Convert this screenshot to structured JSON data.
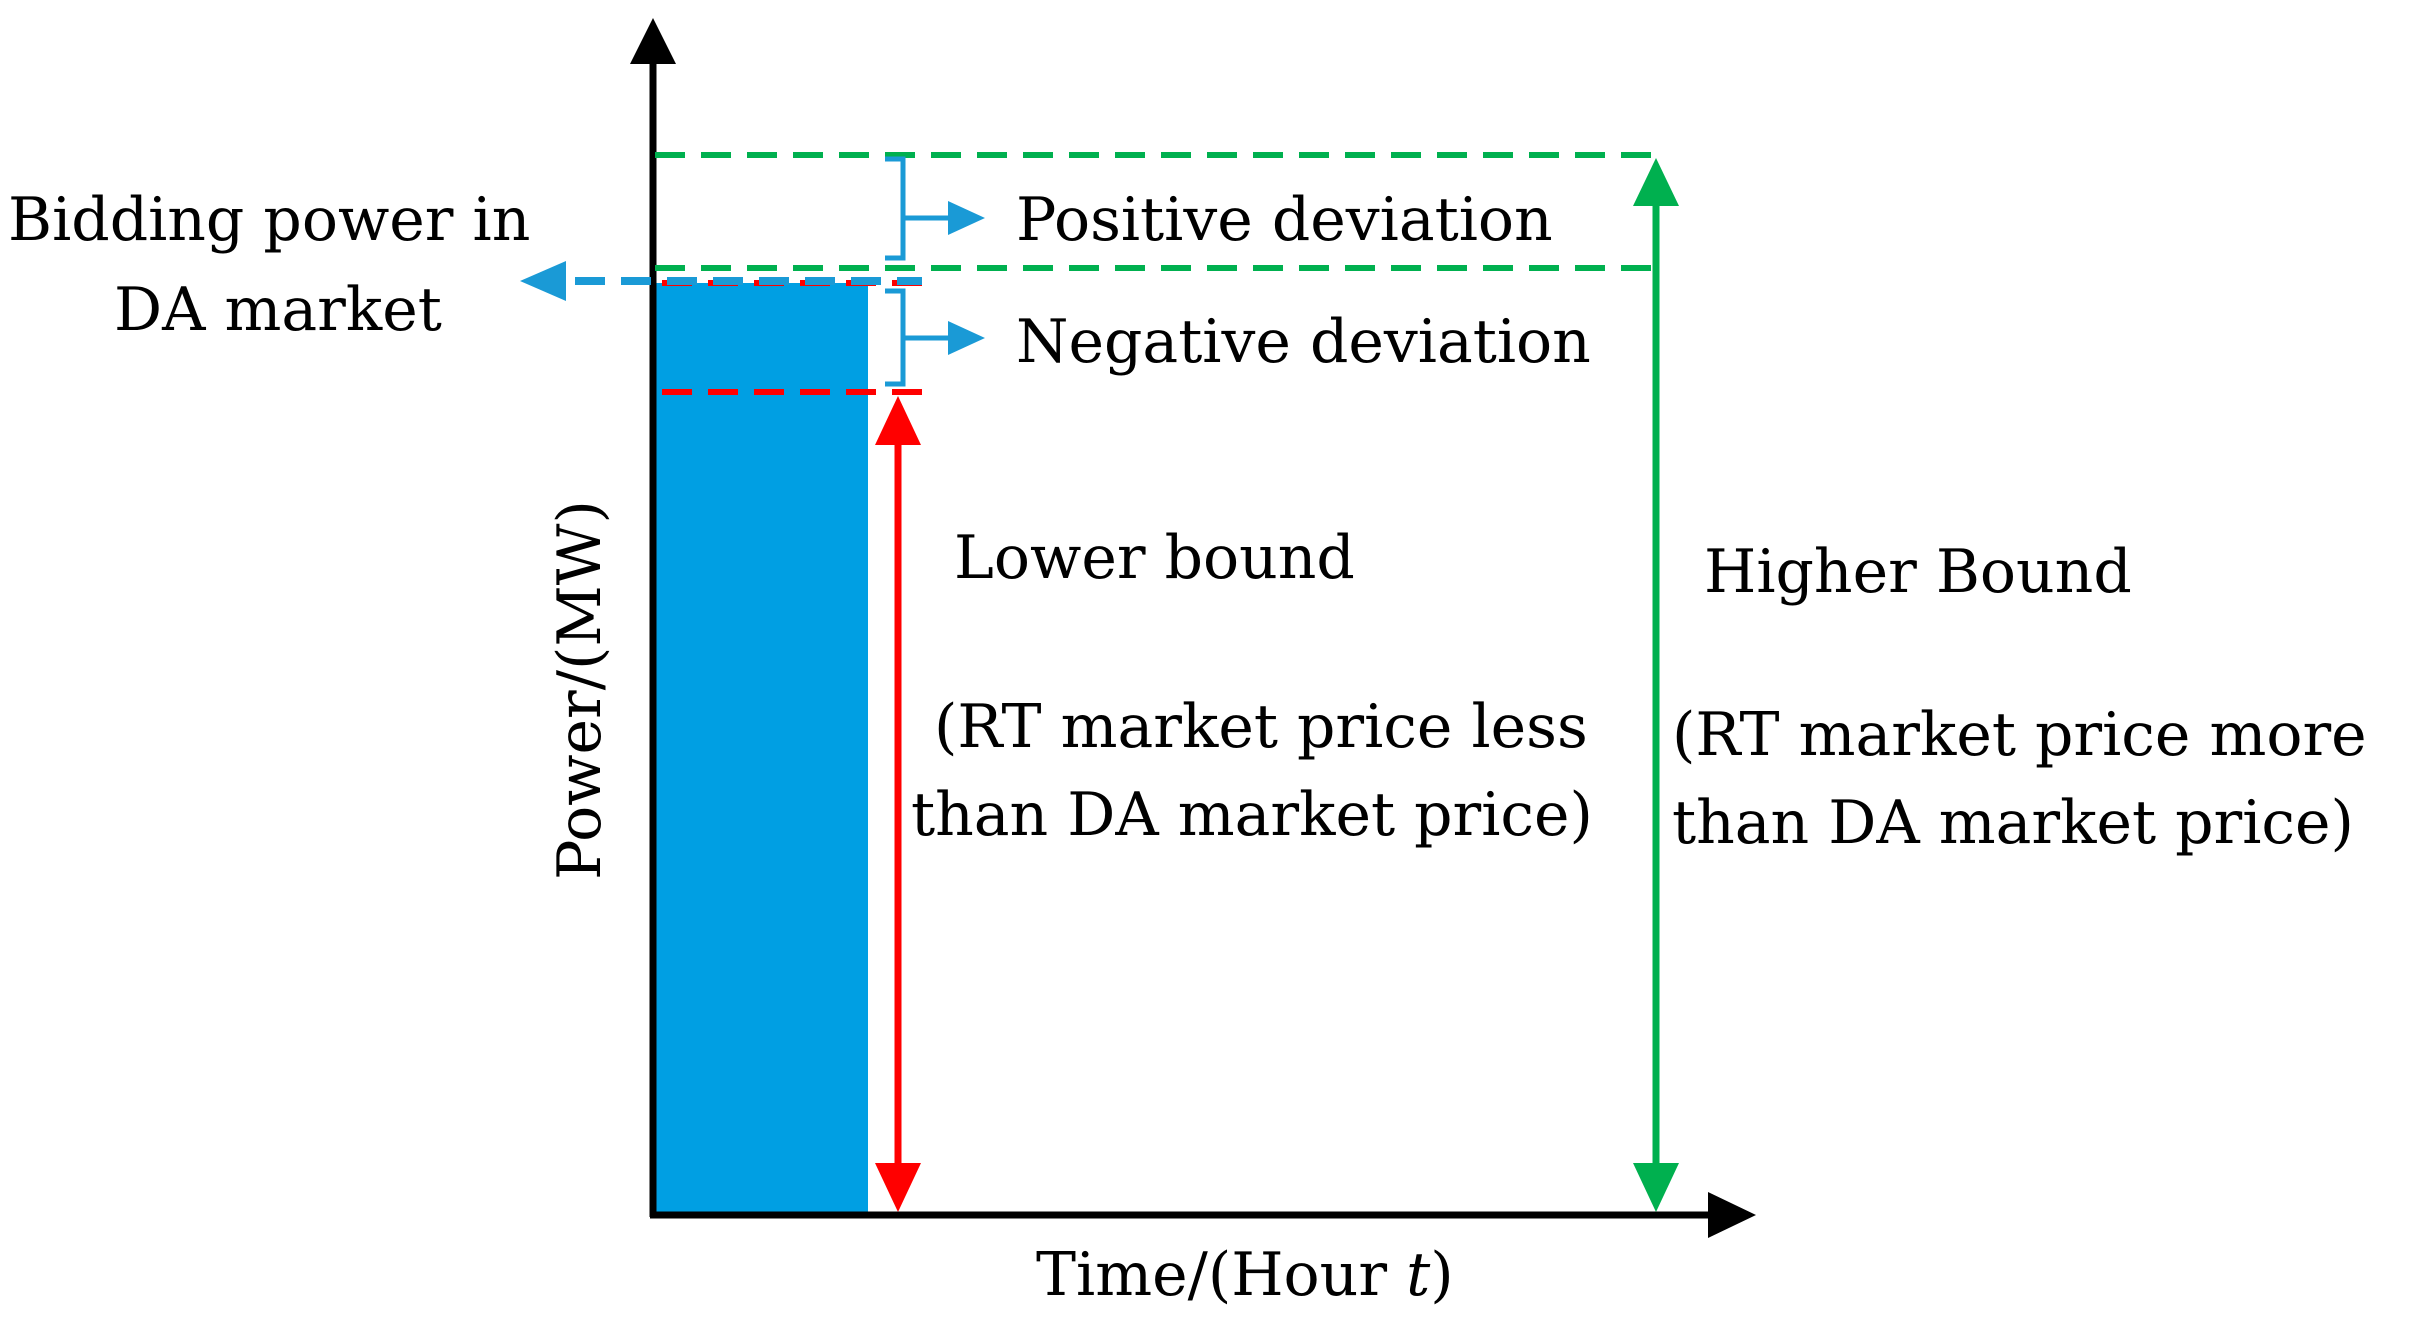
{
  "labels": {
    "bidding_line1": "Bidding power in",
    "bidding_line2": "DA market",
    "positive_deviation": "Positive deviation",
    "negative_deviation": "Negative deviation",
    "lower_bound": "Lower bound",
    "lower_note_line1": "(RT market price less",
    "lower_note_line2": "than DA market price)",
    "higher_bound": "Higher Bound",
    "higher_note_line1": "(RT market price more",
    "higher_note_line2": "than DA market price)",
    "y_axis": "Power/(MW)",
    "x_axis_prefix": "Time/(Hour ",
    "x_axis_var": "t",
    "x_axis_suffix": ")"
  },
  "colors": {
    "axis": "#000000",
    "bar": "#009fe3",
    "lower_bound": "#ff0000",
    "higher_bound": "#00b04f",
    "deviation_marker": "#1a9ad6",
    "bidding_arrow": "#1a9ad6"
  }
}
